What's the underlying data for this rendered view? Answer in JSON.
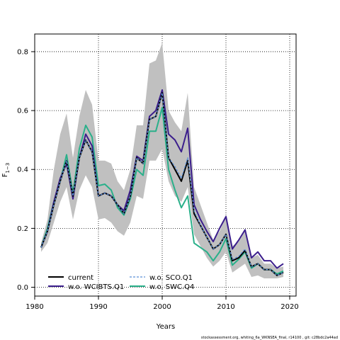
{
  "chart_data": {
    "type": "line",
    "xlabel": "Years",
    "ylabel_main": "F",
    "ylabel_sub": "1−3",
    "xlim": [
      1980,
      2021
    ],
    "ylim": [
      -0.03,
      0.86
    ],
    "x_ticks": [
      1980,
      1990,
      2000,
      2010,
      2020
    ],
    "y_ticks": [
      0.0,
      0.2,
      0.4,
      0.6,
      0.8
    ],
    "y_tick_labels": [
      "0.0",
      "0.2",
      "0.4",
      "0.6",
      "0.8"
    ],
    "grid": "dotted, at ticks",
    "legend_position": "bottom-left",
    "footer_note": "stockassessment.org, whiting_6a_WKNSEA_final, r14100 , git: c28bdc2a44ad",
    "x": [
      1981,
      1982,
      1983,
      1984,
      1985,
      1986,
      1987,
      1988,
      1989,
      1990,
      1991,
      1992,
      1993,
      1994,
      1995,
      1996,
      1997,
      1998,
      1999,
      2000,
      2001,
      2002,
      2003,
      2004,
      2005,
      2006,
      2007,
      2008,
      2009,
      2010,
      2011,
      2012,
      2013,
      2014,
      2015,
      2016,
      2017,
      2018,
      2019
    ],
    "band": {
      "color": "#c0c0c0",
      "lower": [
        0.12,
        0.15,
        0.22,
        0.29,
        0.34,
        0.23,
        0.33,
        0.38,
        0.34,
        0.23,
        0.235,
        0.22,
        0.19,
        0.175,
        0.22,
        0.31,
        0.3,
        0.43,
        0.43,
        0.47,
        0.36,
        0.31,
        0.29,
        0.34,
        0.18,
        0.14,
        0.1,
        0.07,
        0.09,
        0.12,
        0.05,
        0.065,
        0.08,
        0.035,
        0.04,
        0.03,
        0.03,
        0.03,
        0.035
      ],
      "upper": [
        0.15,
        0.23,
        0.4,
        0.52,
        0.59,
        0.44,
        0.58,
        0.67,
        0.62,
        0.43,
        0.43,
        0.42,
        0.36,
        0.33,
        0.4,
        0.55,
        0.55,
        0.76,
        0.77,
        0.83,
        0.6,
        0.56,
        0.53,
        0.66,
        0.34,
        0.28,
        0.22,
        0.16,
        0.19,
        0.24,
        0.14,
        0.155,
        0.19,
        0.1,
        0.11,
        0.08,
        0.08,
        0.065,
        0.07
      ]
    },
    "series": [
      {
        "name": "current",
        "color": "#000000",
        "dash": "solid",
        "values": [
          0.135,
          0.19,
          0.28,
          0.36,
          0.43,
          0.31,
          0.44,
          0.5,
          0.46,
          0.31,
          0.32,
          0.31,
          0.28,
          0.25,
          0.31,
          0.44,
          0.42,
          0.57,
          0.58,
          0.66,
          0.44,
          0.4,
          0.36,
          0.43,
          0.25,
          0.21,
          0.17,
          0.13,
          0.145,
          0.18,
          0.09,
          0.1,
          0.125,
          0.07,
          0.08,
          0.06,
          0.06,
          0.04,
          0.05
        ]
      },
      {
        "name": "w.o. WCIBTS.Q1",
        "color": "#3b1e8c",
        "dash": "solid",
        "values": [
          0.135,
          0.19,
          0.29,
          0.37,
          0.42,
          0.3,
          0.44,
          0.52,
          0.48,
          0.31,
          0.32,
          0.31,
          0.28,
          0.26,
          0.33,
          0.445,
          0.43,
          0.58,
          0.6,
          0.67,
          0.52,
          0.5,
          0.46,
          0.54,
          0.28,
          0.23,
          0.19,
          0.155,
          0.2,
          0.24,
          0.13,
          0.16,
          0.195,
          0.1,
          0.12,
          0.09,
          0.09,
          0.065,
          0.08
        ]
      },
      {
        "name": "w.o. SCO.Q1",
        "color": "#5b8fd6",
        "dash": "dashed",
        "values": [
          0.135,
          0.19,
          0.28,
          0.36,
          0.43,
          0.31,
          0.44,
          0.5,
          0.46,
          0.31,
          0.32,
          0.31,
          0.28,
          0.25,
          0.31,
          0.44,
          0.42,
          0.57,
          0.58,
          0.66,
          0.44,
          0.41,
          0.37,
          0.44,
          0.26,
          0.21,
          0.17,
          0.13,
          0.145,
          0.18,
          0.095,
          0.105,
          0.13,
          0.07,
          0.08,
          0.06,
          0.06,
          0.04,
          0.05
        ]
      },
      {
        "name": "w.o. SWC.Q4",
        "color": "#2ab08a",
        "dash": "solid",
        "values": [
          0.135,
          0.2,
          0.29,
          0.36,
          0.45,
          0.32,
          0.47,
          0.55,
          0.51,
          0.345,
          0.35,
          0.33,
          0.27,
          0.245,
          0.3,
          0.4,
          0.38,
          0.53,
          0.53,
          0.61,
          0.4,
          0.33,
          0.27,
          0.31,
          0.15,
          0.135,
          0.12,
          0.09,
          0.12,
          0.165,
          0.075,
          0.095,
          0.12,
          0.065,
          0.08,
          0.06,
          0.06,
          0.045,
          0.055
        ]
      }
    ]
  }
}
